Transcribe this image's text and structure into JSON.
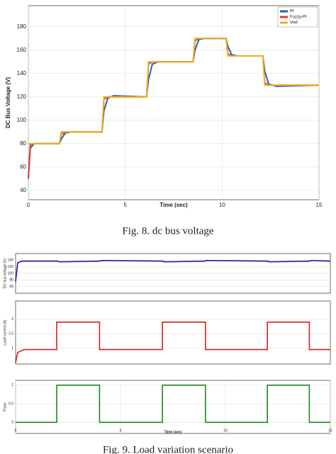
{
  "chart_data": [
    {
      "type": "line",
      "caption": "Fig. 8.   dc bus voltage",
      "xlabel": "Time (sec)",
      "ylabel": "DC Bus Voltage (V)",
      "xlim": [
        0,
        15
      ],
      "xticks": [
        0,
        5,
        10,
        15
      ],
      "ylim": [
        32,
        198
      ],
      "yticks": [
        40,
        60,
        80,
        100,
        120,
        140,
        160,
        180
      ],
      "grid": true,
      "legend": "top-right",
      "x": [
        0,
        0.1,
        0.3,
        0.6,
        1.6,
        1.7,
        1.9,
        2.2,
        3.8,
        3.9,
        4.1,
        4.4,
        6.1,
        6.2,
        6.4,
        6.7,
        8.5,
        8.6,
        8.8,
        9.1,
        10.2,
        10.3,
        10.5,
        10.8,
        12.1,
        12.2,
        12.4,
        12.8,
        15
      ],
      "series": [
        {
          "name": "PI",
          "color": "#1f5fbf",
          "values": [
            50,
            76,
            80,
            80,
            80,
            84,
            89,
            90,
            90,
            108,
            119,
            121,
            120,
            135,
            148,
            150,
            150,
            160,
            169,
            170,
            170,
            163,
            156,
            155,
            155,
            142,
            131,
            129,
            130
          ]
        },
        {
          "name": "Fuzzy-PI",
          "color": "#d9412b",
          "values": [
            50,
            79,
            80,
            80,
            80,
            88,
            90,
            90,
            90,
            118,
            120,
            120,
            120,
            148,
            150,
            150,
            150,
            168,
            170,
            170,
            170,
            157,
            155,
            155,
            155,
            132,
            130,
            130,
            130
          ]
        },
        {
          "name": "Vref",
          "color": "#edb120",
          "values": [
            80,
            80,
            80,
            80,
            80,
            90,
            90,
            90,
            90,
            120,
            120,
            120,
            120,
            150,
            150,
            150,
            150,
            170,
            170,
            170,
            170,
            155,
            155,
            155,
            155,
            130,
            130,
            130,
            130
          ]
        }
      ]
    },
    {
      "type": "line",
      "ylabel": "DC bus voltage (V)",
      "xlim": [
        0,
        15
      ],
      "ylim": [
        40,
        160
      ],
      "yticks": [
        60,
        80,
        100,
        120,
        140
      ],
      "grid": true,
      "x": [
        0,
        0.1,
        0.3,
        2,
        2.1,
        4,
        4.1,
        7,
        7.1,
        9,
        9.1,
        12,
        12.1,
        14,
        14.1,
        15
      ],
      "series": [
        {
          "color": "#1a1aa6",
          "values": [
            75,
            132,
            137,
            137,
            135,
            137,
            139,
            137,
            135,
            137,
            139,
            137,
            135,
            137,
            139,
            137
          ]
        }
      ]
    },
    {
      "type": "line",
      "ylabel": "Load current (A)",
      "xlim": [
        0,
        15
      ],
      "ylim": [
        0.45,
        2.63
      ],
      "yticks": [
        1,
        1.5,
        2
      ],
      "grid": true,
      "x": [
        0,
        0.1,
        0.4,
        1.96,
        1.96,
        4.0,
        4.0,
        7.0,
        7.0,
        9.05,
        9.05,
        12.0,
        12.0,
        14.0,
        14.0,
        15
      ],
      "series": [
        {
          "color": "#d62020",
          "values": [
            0.5,
            0.85,
            0.95,
            0.95,
            1.9,
            1.9,
            0.95,
            0.95,
            1.9,
            1.9,
            0.95,
            0.95,
            1.9,
            1.9,
            0.95,
            0.95
          ]
        }
      ]
    },
    {
      "type": "line",
      "caption": "Fig. 9.   Load variation scenario",
      "xlabel": "Time (sec)",
      "ylabel": "Pulse",
      "xlim": [
        0,
        15
      ],
      "xticks": [
        0,
        5,
        10,
        15
      ],
      "ylim": [
        -0.3,
        1.13
      ],
      "yticks": [
        0,
        0.5,
        1
      ],
      "grid": true,
      "x": [
        0,
        1.96,
        1.96,
        4.0,
        4.0,
        7.0,
        7.0,
        9.05,
        9.05,
        12.0,
        12.0,
        14.0,
        14.0,
        15
      ],
      "series": [
        {
          "color": "#1a8a1a",
          "values": [
            0,
            0,
            1,
            1,
            0,
            0,
            1,
            1,
            0,
            0,
            1,
            1,
            0,
            0
          ]
        }
      ]
    }
  ]
}
